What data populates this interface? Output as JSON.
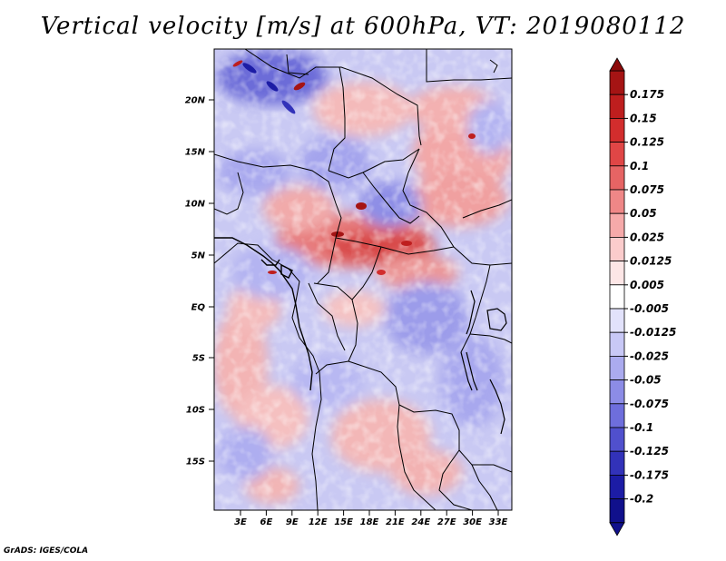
{
  "title": "Vertical velocity [m/s] at 600hPa, VT: 2019080112",
  "footer": "GrADS: IGES/COLA",
  "map": {
    "lat_labels": [
      "20N",
      "15N",
      "10N",
      "5N",
      "EQ",
      "5S",
      "10S",
      "15S"
    ],
    "lon_labels": [
      "3E",
      "6E",
      "9E",
      "12E",
      "15E",
      "18E",
      "21E",
      "24E",
      "27E",
      "30E",
      "33E"
    ]
  },
  "colorbar": {
    "labels": [
      "0.175",
      "0.15",
      "0.125",
      "0.1",
      "0.075",
      "0.05",
      "0.025",
      "0.0125",
      "0.005",
      "-0.005",
      "-0.0125",
      "-0.025",
      "-0.05",
      "-0.075",
      "-0.1",
      "-0.125",
      "-0.175",
      "-0.2"
    ],
    "colors": [
      "#a51414",
      "#be1e1e",
      "#d22d2d",
      "#e04646",
      "#e66464",
      "#ef8787",
      "#f6aaaa",
      "#fbcccc",
      "#fde6e6",
      "#ffffff",
      "#e2e2fb",
      "#c8c8f6",
      "#ababef",
      "#8c8ce6",
      "#6e6edc",
      "#5050cd",
      "#3232b9",
      "#1c1ca5",
      "#10108c"
    ],
    "cap_top_color": "#8c0a0a",
    "cap_bottom_color": "#10108c"
  }
}
